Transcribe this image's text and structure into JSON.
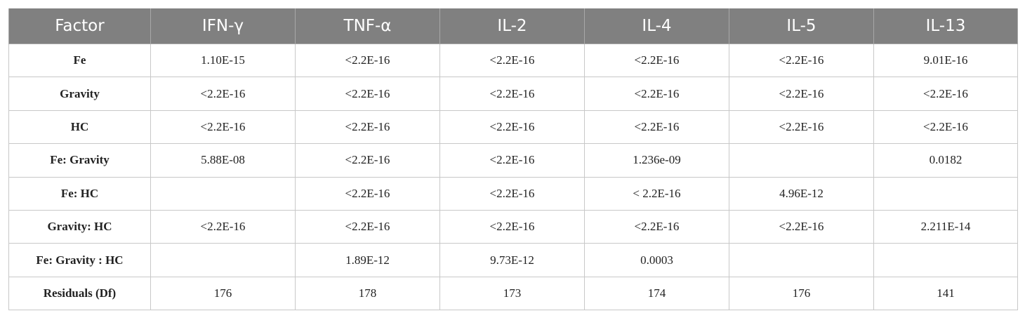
{
  "table": {
    "header": [
      "Factor",
      "IFN-γ",
      "TNF-α",
      "IL-2",
      "IL-4",
      "IL-5",
      "IL-13"
    ],
    "rows": [
      [
        "Fe",
        "1.10E-15",
        "<2.2E-16",
        "<2.2E-16",
        "<2.2E-16",
        "<2.2E-16",
        "9.01E-16"
      ],
      [
        "Gravity",
        "<2.2E-16",
        "<2.2E-16",
        "<2.2E-16",
        "<2.2E-16",
        "<2.2E-16",
        "<2.2E-16"
      ],
      [
        "HC",
        "<2.2E-16",
        "<2.2E-16",
        "<2.2E-16",
        "<2.2E-16",
        "<2.2E-16",
        "<2.2E-16"
      ],
      [
        "Fe: Gravity",
        "5.88E-08",
        "<2.2E-16",
        "<2.2E-16",
        "1.236e-09",
        null,
        "0.0182"
      ],
      [
        "Fe: HC",
        null,
        "<2.2E-16",
        "<2.2E-16",
        "< 2.2E-16",
        "4.96E-12",
        null
      ],
      [
        "Gravity: HC",
        "<2.2E-16",
        "<2.2E-16",
        "<2.2E-16",
        "<2.2E-16",
        "<2.2E-16",
        "2.211E-14"
      ],
      [
        "Fe: Gravity : HC",
        null,
        "1.89E-12",
        "9.73E-12",
        "0.0003",
        null,
        null
      ],
      [
        "Residuals (Df)",
        176,
        178,
        173,
        174,
        176,
        141
      ]
    ]
  }
}
